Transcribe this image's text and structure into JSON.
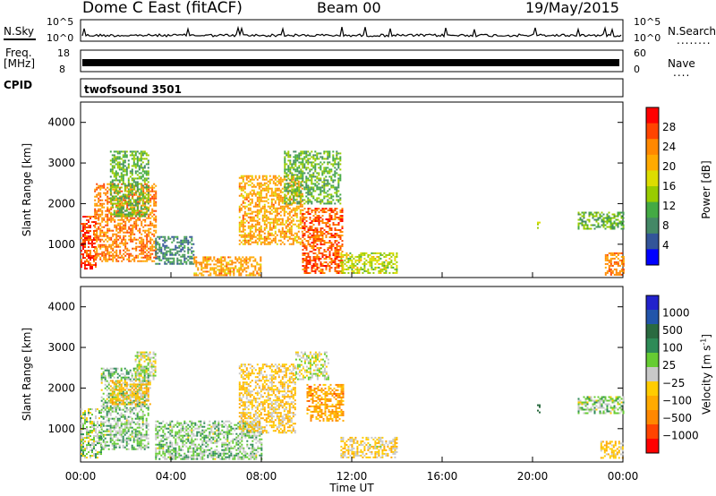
{
  "header": {
    "title": "Dome C East (fitACF)",
    "beam": "Beam 00",
    "date": "19/May/2015"
  },
  "top_panels": {
    "nsky_label": "N.Sky",
    "nsearch_label": "N.Search",
    "nsearch_dots": "........",
    "noise_ticks_left": [
      "10^5",
      "10^0"
    ],
    "noise_ticks_right": [
      "10^5",
      "10^0"
    ],
    "freq_label": "Freq.",
    "freq_unit": "[MHz]",
    "freq_ticks": [
      "18",
      "8"
    ],
    "nave_label": "Nave",
    "nave_dots": "....",
    "nave_ticks": [
      "60",
      "0"
    ],
    "cpid_label": "CPID",
    "cpid_text": "twofsound 3501"
  },
  "power_panel": {
    "ylabel": "Slant Range [km]",
    "yticks": [
      "4000",
      "3000",
      "2000",
      "1000"
    ],
    "colorbar_label": "Power [dB]",
    "colorbar_ticks": [
      "28",
      "24",
      "20",
      "16",
      "12",
      "8",
      "4"
    ],
    "colors": [
      "#ff0000",
      "#ff4400",
      "#ff8800",
      "#ffaa00",
      "#dddd00",
      "#99cc00",
      "#44aa44",
      "#448866",
      "#335599",
      "#0000ff"
    ]
  },
  "velocity_panel": {
    "ylabel": "Slant Range [km]",
    "yticks": [
      "4000",
      "3000",
      "2000",
      "1000"
    ],
    "colorbar_label": "Velocity [m s",
    "colorbar_label_sup": "-1",
    "colorbar_label_end": "]",
    "colorbar_ticks": [
      "1000",
      "500",
      "100",
      "25",
      "−25",
      "−100",
      "−500",
      "−1000"
    ],
    "colors": [
      "#2222cc",
      "#2255aa",
      "#2a6a40",
      "#2e8b57",
      "#66cc33",
      "#c8c8c8",
      "#ffcc00",
      "#ffaa00",
      "#ff8800",
      "#ff4400",
      "#ff0000"
    ]
  },
  "xaxis": {
    "label": "Time UT",
    "ticks": [
      "00:00",
      "04:00",
      "08:00",
      "12:00",
      "16:00",
      "20:00",
      "00:00"
    ]
  },
  "chart_data": {
    "type": "heatmap",
    "title": "Dome C East (fitACF)",
    "subtitle": "Beam 00",
    "date": "19/May/2015",
    "xlabel": "Time UT",
    "x_range_hours": [
      0,
      24
    ],
    "ylabel": "Slant Range [km]",
    "ylim_km": [
      180,
      4500
    ],
    "panels": [
      {
        "name": "Power [dB]",
        "color_range": [
          0,
          32
        ],
        "regions": [
          {
            "t": [
              0.0,
              0.7
            ],
            "r": [
              400,
              1700
            ],
            "value": 28
          },
          {
            "t": [
              0.6,
              3.3
            ],
            "r": [
              600,
              2500
            ],
            "value": 24
          },
          {
            "t": [
              1.3,
              3.0
            ],
            "r": [
              1700,
              3300
            ],
            "value": 12
          },
          {
            "t": [
              3.3,
              5.0
            ],
            "r": [
              500,
              1200
            ],
            "value": 8
          },
          {
            "t": [
              5.0,
              8.0
            ],
            "r": [
              250,
              700
            ],
            "value": 22
          },
          {
            "t": [
              7.0,
              9.8
            ],
            "r": [
              1000,
              2700
            ],
            "value": 22
          },
          {
            "t": [
              9.0,
              11.5
            ],
            "r": [
              2000,
              3300
            ],
            "value": 12
          },
          {
            "t": [
              9.8,
              11.6
            ],
            "r": [
              300,
              1900
            ],
            "value": 26
          },
          {
            "t": [
              11.5,
              14.0
            ],
            "r": [
              300,
              800
            ],
            "value": 16
          },
          {
            "t": [
              20.2,
              20.3
            ],
            "r": [
              1400,
              1600
            ],
            "value": 14
          },
          {
            "t": [
              22.0,
              24.0
            ],
            "r": [
              1400,
              1800
            ],
            "value": 12
          },
          {
            "t": [
              23.2,
              24.0
            ],
            "r": [
              250,
              800
            ],
            "value": 24
          }
        ]
      },
      {
        "name": "Velocity [m s-1]",
        "color_range": [
          -1000,
          1000
        ],
        "regions": [
          {
            "t": [
              0.0,
              0.9
            ],
            "r": [
              300,
              1500
            ],
            "value": 80
          },
          {
            "t": [
              0.9,
              3.0
            ],
            "r": [
              500,
              2500
            ],
            "value": 150
          },
          {
            "t": [
              1.3,
              3.1
            ],
            "r": [
              1600,
              2200
            ],
            "value": -250
          },
          {
            "t": [
              2.4,
              3.3
            ],
            "r": [
              2200,
              2900
            ],
            "value": 10
          },
          {
            "t": [
              3.3,
              8.0
            ],
            "r": [
              250,
              1200
            ],
            "value": 150
          },
          {
            "t": [
              7.0,
              9.5
            ],
            "r": [
              900,
              2600
            ],
            "value": -200
          },
          {
            "t": [
              9.5,
              11.0
            ],
            "r": [
              2200,
              2900
            ],
            "value": 10
          },
          {
            "t": [
              10.0,
              11.6
            ],
            "r": [
              1200,
              2100
            ],
            "value": -400
          },
          {
            "t": [
              11.5,
              14.0
            ],
            "r": [
              300,
              800
            ],
            "value": -150
          },
          {
            "t": [
              20.2,
              20.3
            ],
            "r": [
              1400,
              1600
            ],
            "value": 600
          },
          {
            "t": [
              22.0,
              24.0
            ],
            "r": [
              1400,
              1800
            ],
            "value": 100
          },
          {
            "t": [
              23.0,
              24.0
            ],
            "r": [
              300,
              700
            ],
            "value": -200
          }
        ]
      }
    ]
  }
}
